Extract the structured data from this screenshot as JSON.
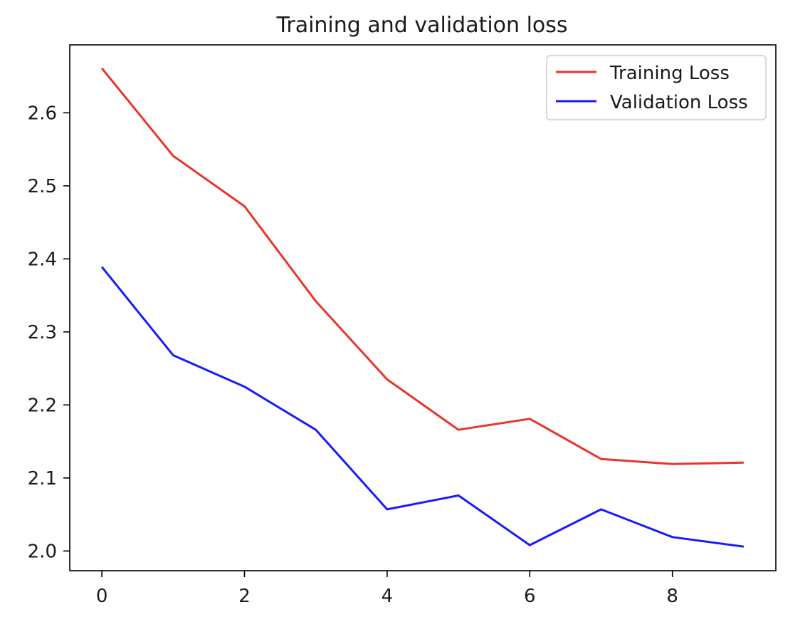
{
  "chart_data": {
    "type": "line",
    "title": "Training and validation loss",
    "xlabel": "",
    "ylabel": "",
    "x": [
      0,
      1,
      2,
      3,
      4,
      5,
      6,
      7,
      8,
      9
    ],
    "xlim": [
      -0.45,
      9.45
    ],
    "ylim": [
      1.973,
      2.693
    ],
    "xticks": [
      0,
      2,
      4,
      6,
      8
    ],
    "xtick_labels": [
      "0",
      "2",
      "4",
      "6",
      "8"
    ],
    "yticks": [
      2.0,
      2.1,
      2.2,
      2.3,
      2.4,
      2.5,
      2.6
    ],
    "ytick_labels": [
      "2.0",
      "2.1",
      "2.2",
      "2.3",
      "2.4",
      "2.5",
      "2.6"
    ],
    "grid": false,
    "legend_position": "top-right",
    "series": [
      {
        "name": "Training Loss",
        "color": "#e8352a",
        "values": [
          2.661,
          2.541,
          2.472,
          2.342,
          2.235,
          2.166,
          2.181,
          2.126,
          2.119,
          2.121
        ]
      },
      {
        "name": "Validation Loss",
        "color": "#1a1aff",
        "values": [
          2.389,
          2.268,
          2.225,
          2.166,
          2.057,
          2.076,
          2.008,
          2.057,
          2.019,
          2.006
        ]
      }
    ]
  }
}
